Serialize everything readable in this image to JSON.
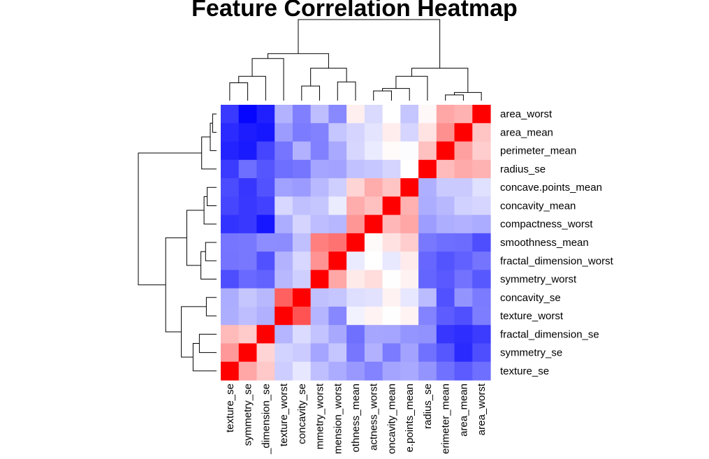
{
  "chart_data": {
    "type": "heatmap",
    "title": "Feature Correlation Heatmap",
    "row_labels": [
      "area_worst",
      "area_mean",
      "perimeter_mean",
      "radius_se",
      "concave.points_mean",
      "concavity_mean",
      "compactness_worst",
      "smoothness_mean",
      "fractal_dimension_worst",
      "symmetry_worst",
      "concavity_se",
      "texture_worst",
      "fractal_dimension_se",
      "symmetry_se",
      "texture_se"
    ],
    "col_labels": [
      "texture_se",
      "symmetry_se",
      "fractal_dimension_se",
      "texture_worst",
      "concavity_se",
      "symmetry_worst",
      "fractal_dimension_worst",
      "smoothness_mean",
      "compactness_worst",
      "concavity_mean",
      "concave.points_mean",
      "radius_se",
      "perimeter_mean",
      "area_mean",
      "area_worst"
    ],
    "col_labels_visible": [
      "texture_se",
      "symmetry_se",
      "_dimension_se",
      "texture_worst",
      "concavity_se",
      "mmetry_worst",
      "mension_worst",
      "othness_mean",
      "actness_worst",
      "oncavity_mean",
      "e.points_mean",
      "radius_se",
      "erimeter_mean",
      "area_mean",
      "area_worst"
    ],
    "color_scale": {
      "low": "#0000ff",
      "mid": "#ffffff",
      "high": "#ff0000",
      "range": [
        -1,
        1
      ]
    },
    "row_dendrogram": true,
    "col_dendrogram": true
  }
}
